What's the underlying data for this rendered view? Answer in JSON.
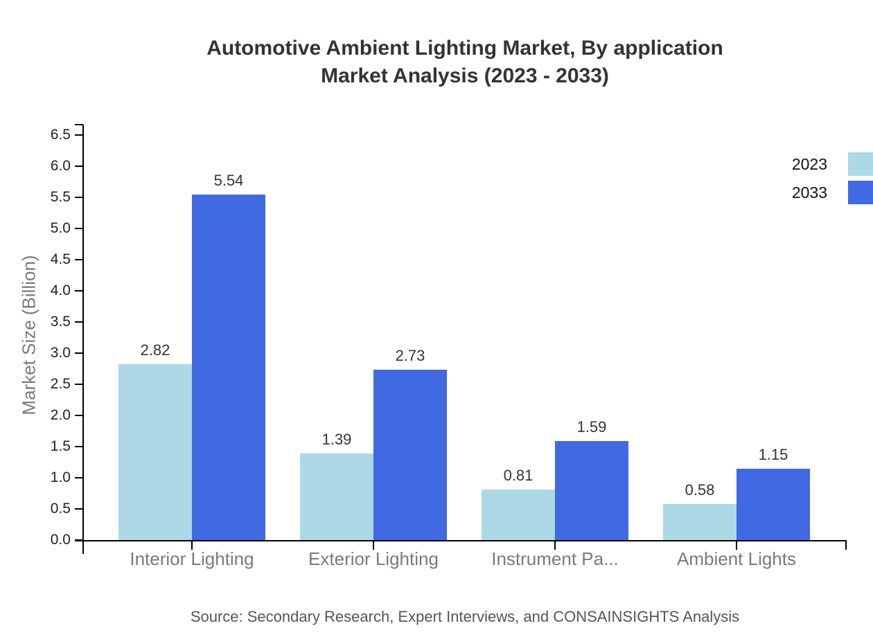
{
  "title": {
    "line1": "Automotive Ambient Lighting Market, By application",
    "line2": "Market Analysis (2023 - 2033)"
  },
  "source_note": "Source: Secondary Research, Expert Interviews, and CONSAINSIGHTS Analysis",
  "chart_data": {
    "type": "bar",
    "title": "Automotive Ambient Lighting Market, By application Market Analysis (2023 - 2033)",
    "categories": [
      "Interior Lighting",
      "Exterior Lighting",
      "Instrument Pa...",
      "Ambient Lights"
    ],
    "series": [
      {
        "name": "2023",
        "color": "#ADD8E6",
        "values": [
          2.82,
          1.39,
          0.81,
          0.58
        ]
      },
      {
        "name": "2033",
        "color": "#4169E1",
        "values": [
          5.54,
          2.73,
          1.59,
          1.15
        ]
      }
    ],
    "xlabel": "",
    "ylabel": "Market Size (Billion)",
    "ylim": [
      0,
      6.5
    ],
    "yticks": [
      "0.0",
      "0.5",
      "1.0",
      "1.5",
      "2.0",
      "2.5",
      "3.0",
      "3.5",
      "4.0",
      "4.5",
      "5.0",
      "5.5",
      "6.0",
      "6.5"
    ],
    "grid": false,
    "legend_position": "top-right",
    "bar_value_labels": true
  },
  "colors": {
    "axis_line": "#000000",
    "y_tick_label": "#222222",
    "x_category_label": "#7a7a7a",
    "value_label": "#333333",
    "title_text": "#333333",
    "source_text": "#555555",
    "y_axis_title": "#7a7a7a",
    "legend_text": "#111111"
  }
}
